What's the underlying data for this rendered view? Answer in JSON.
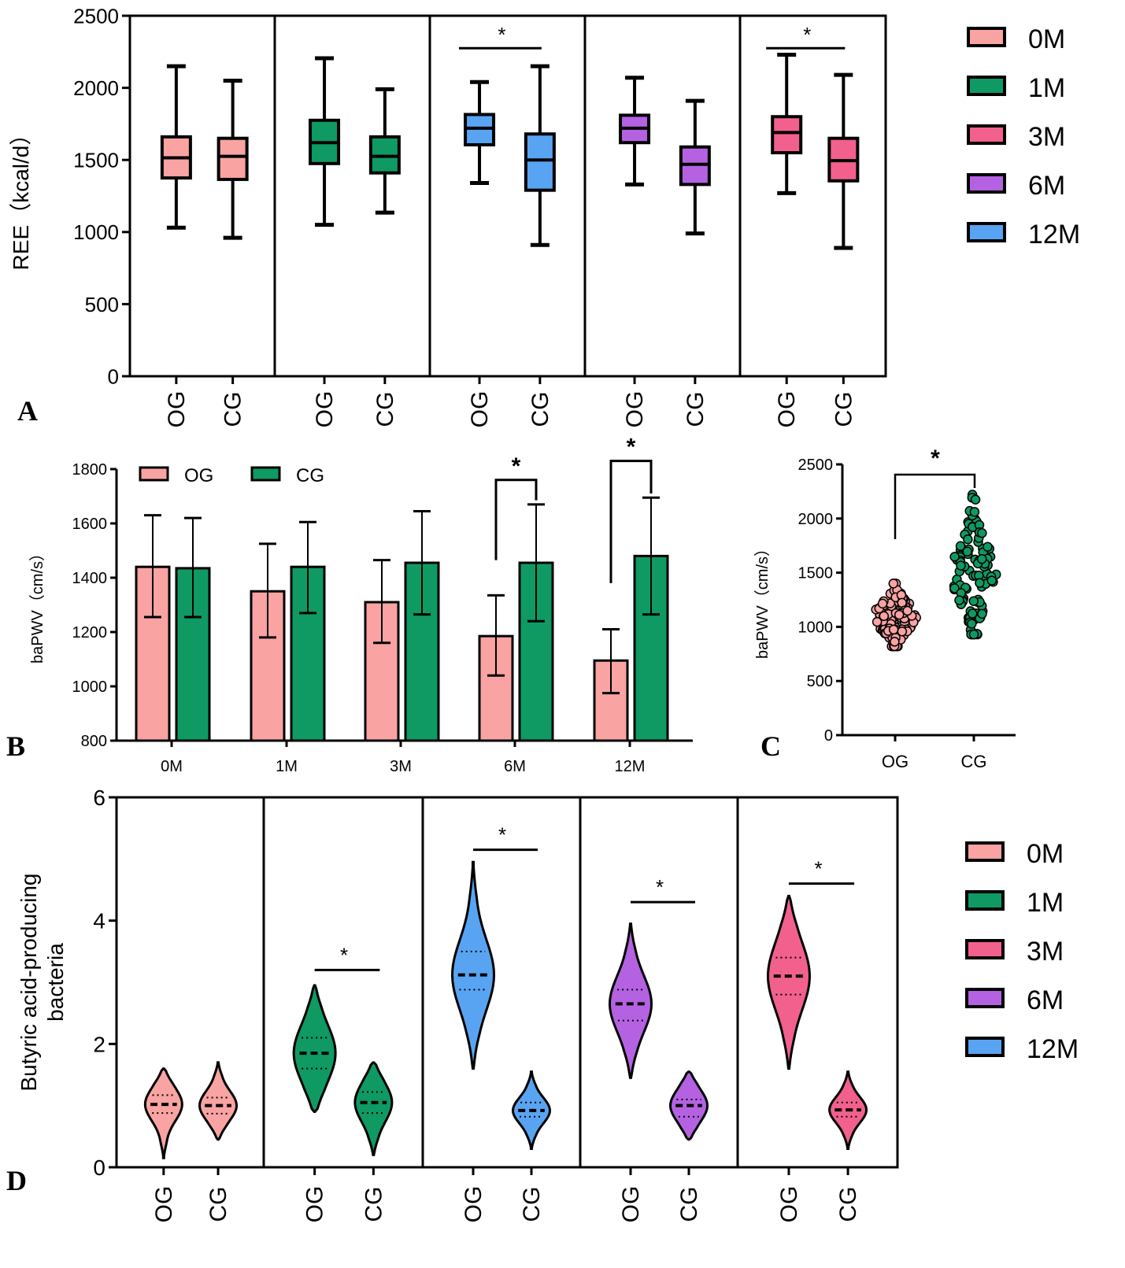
{
  "colors": {
    "0M": "#F9A3A3",
    "1M": "#0E9A62",
    "3M": "#F2608E",
    "6M": "#B462E2",
    "12M": "#59A4F2"
  },
  "chart_data": [
    {
      "id": "A",
      "type": "box",
      "panel_label": "A",
      "ylabel": "REE（kcal/d）",
      "ylim": [
        0,
        2500
      ],
      "yticks": [
        0,
        500,
        1000,
        1500,
        2000,
        2500
      ],
      "legend": {
        "position": "right",
        "entries": [
          "0M",
          "1M",
          "3M",
          "6M",
          "12M"
        ]
      },
      "panels": [
        {
          "color_key": "0M",
          "sig": false,
          "groups": [
            {
              "label": "OG",
              "min": 1030,
              "q1": 1375,
              "median": 1515,
              "q3": 1660,
              "max": 2150
            },
            {
              "label": "CG",
              "min": 960,
              "q1": 1365,
              "median": 1525,
              "q3": 1650,
              "max": 2050
            }
          ]
        },
        {
          "color_key": "1M",
          "sig": false,
          "groups": [
            {
              "label": "OG",
              "min": 1050,
              "q1": 1475,
              "median": 1620,
              "q3": 1775,
              "max": 2205
            },
            {
              "label": "CG",
              "min": 1135,
              "q1": 1410,
              "median": 1525,
              "q3": 1660,
              "max": 1990
            }
          ]
        },
        {
          "color_key": "12M",
          "sig": true,
          "sig_label": "*",
          "sig_y": 2275,
          "groups": [
            {
              "label": "OG",
              "min": 1340,
              "q1": 1605,
              "median": 1720,
              "q3": 1815,
              "max": 2040
            },
            {
              "label": "CG",
              "min": 910,
              "q1": 1290,
              "median": 1500,
              "q3": 1680,
              "max": 2150
            }
          ]
        },
        {
          "color_key": "6M",
          "sig": false,
          "groups": [
            {
              "label": "OG",
              "min": 1330,
              "q1": 1620,
              "median": 1720,
              "q3": 1810,
              "max": 2070
            },
            {
              "label": "CG",
              "min": 990,
              "q1": 1330,
              "median": 1470,
              "q3": 1590,
              "max": 1910
            }
          ]
        },
        {
          "color_key": "3M",
          "sig": true,
          "sig_label": "*",
          "sig_y": 2275,
          "groups": [
            {
              "label": "OG",
              "min": 1270,
              "q1": 1550,
              "median": 1690,
              "q3": 1800,
              "max": 2230
            },
            {
              "label": "CG",
              "min": 890,
              "q1": 1355,
              "median": 1495,
              "q3": 1650,
              "max": 2090
            }
          ]
        }
      ]
    },
    {
      "id": "B",
      "type": "bar",
      "panel_label": "B",
      "ylabel": "baPWV（cm/s）",
      "ylim": [
        800,
        1800
      ],
      "yticks": [
        800,
        1000,
        1200,
        1400,
        1600,
        1800
      ],
      "categories": [
        "0M",
        "1M",
        "3M",
        "6M",
        "12M"
      ],
      "legend": {
        "position": "top-left",
        "entries": [
          "OG",
          "CG"
        ]
      },
      "series": [
        {
          "name": "OG",
          "color_key": "0M",
          "values": [
            1440,
            1350,
            1310,
            1185,
            1095
          ],
          "err_low": [
            1255,
            1180,
            1160,
            1040,
            975
          ],
          "err_high": [
            1630,
            1525,
            1465,
            1335,
            1210
          ]
        },
        {
          "name": "CG",
          "color_key": "1M",
          "values": [
            1435,
            1440,
            1455,
            1455,
            1480
          ],
          "err_low": [
            1255,
            1270,
            1265,
            1240,
            1265
          ],
          "err_high": [
            1620,
            1605,
            1645,
            1670,
            1695
          ]
        }
      ],
      "significance": [
        {
          "category": "6M",
          "label": "*"
        },
        {
          "category": "12M",
          "label": "*"
        }
      ]
    },
    {
      "id": "C",
      "type": "scatter",
      "panel_label": "C",
      "ylabel": "baPWV（cm/s）",
      "ylim": [
        0,
        2500
      ],
      "yticks": [
        0,
        500,
        1000,
        1500,
        2000,
        2500
      ],
      "categories": [
        "OG",
        "CG"
      ],
      "groups": [
        {
          "name": "OG",
          "color_key": "0M",
          "n": 110,
          "mean": 1100,
          "min": 820,
          "max": 1400
        },
        {
          "name": "CG",
          "color_key": "1M",
          "n": 110,
          "mean": 1500,
          "min": 930,
          "max": 2220
        }
      ],
      "significance": {
        "label": "*"
      }
    },
    {
      "id": "D",
      "type": "violin",
      "panel_label": "D",
      "ylabel": "Butyric acid-producing bacteria",
      "ylim": [
        0,
        6
      ],
      "yticks": [
        0,
        2,
        4,
        6
      ],
      "legend": {
        "position": "right",
        "entries": [
          "0M",
          "1M",
          "3M",
          "6M",
          "12M"
        ]
      },
      "panels": [
        {
          "color_key": "0M",
          "sig": false,
          "groups": [
            {
              "label": "OG",
              "min": 0.15,
              "q1": 0.88,
              "median": 1.02,
              "q3": 1.17,
              "max": 1.6
            },
            {
              "label": "CG",
              "min": 0.45,
              "q1": 0.87,
              "median": 1.0,
              "q3": 1.13,
              "max": 1.7
            }
          ]
        },
        {
          "color_key": "1M",
          "sig": true,
          "sig_label": "*",
          "sig_y": 3.2,
          "groups": [
            {
              "label": "OG",
              "min": 0.9,
              "q1": 1.6,
              "median": 1.85,
              "q3": 2.1,
              "max": 2.95
            },
            {
              "label": "CG",
              "min": 0.2,
              "q1": 0.88,
              "median": 1.05,
              "q3": 1.22,
              "max": 1.7
            }
          ]
        },
        {
          "color_key": "12M",
          "sig": true,
          "sig_label": "*",
          "sig_y": 5.15,
          "groups": [
            {
              "label": "OG",
              "min": 1.6,
              "q1": 2.88,
              "median": 3.12,
              "q3": 3.5,
              "max": 4.95
            },
            {
              "label": "CG",
              "min": 0.3,
              "q1": 0.82,
              "median": 0.92,
              "q3": 1.05,
              "max": 1.55
            }
          ]
        },
        {
          "color_key": "6M",
          "sig": true,
          "sig_label": "*",
          "sig_y": 4.3,
          "groups": [
            {
              "label": "OG",
              "min": 1.45,
              "q1": 2.38,
              "median": 2.65,
              "q3": 2.88,
              "max": 3.95
            },
            {
              "label": "CG",
              "min": 0.45,
              "q1": 0.82,
              "median": 1.0,
              "q3": 1.1,
              "max": 1.55
            }
          ]
        },
        {
          "color_key": "3M",
          "sig": true,
          "sig_label": "*",
          "sig_y": 4.6,
          "groups": [
            {
              "label": "OG",
              "min": 1.6,
              "q1": 2.8,
              "median": 3.1,
              "q3": 3.4,
              "max": 4.4
            },
            {
              "label": "CG",
              "min": 0.3,
              "q1": 0.82,
              "median": 0.93,
              "q3": 1.05,
              "max": 1.55
            }
          ]
        }
      ]
    }
  ]
}
